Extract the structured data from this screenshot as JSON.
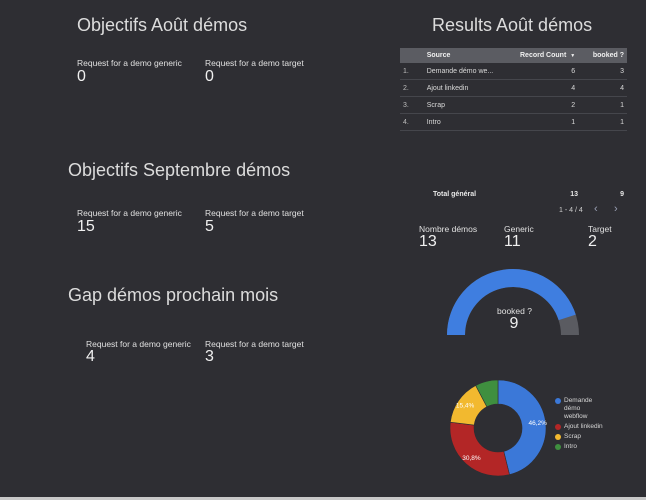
{
  "sections": {
    "aout_title": "Objectifs Août démos",
    "septembre_title": "Objectifs Septembre démos",
    "gap_title": "Gap démos prochain mois",
    "results_title": "Results Août démos"
  },
  "aout": {
    "generic_label": "Request for a demo generic",
    "generic_value": "0",
    "target_label": "Request for a demo target",
    "target_value": "0"
  },
  "septembre": {
    "generic_label": "Request for a demo generic",
    "generic_value": "15",
    "target_label": "Request for a demo target",
    "target_value": "5"
  },
  "gap": {
    "generic_label": "Request for a demo generic",
    "generic_value": "4",
    "target_label": "Request for a demo target",
    "target_value": "3"
  },
  "table": {
    "headers": {
      "source": "Source",
      "record_count": "Record Count",
      "sort_indicator": "▼",
      "booked": "booked ?"
    },
    "rows": [
      {
        "idx": "1.",
        "source": "Demande démo we...",
        "count": "6",
        "booked": "3"
      },
      {
        "idx": "2.",
        "source": "Ajout linkedin",
        "count": "4",
        "booked": "4"
      },
      {
        "idx": "3.",
        "source": "Scrap",
        "count": "2",
        "booked": "1"
      },
      {
        "idx": "4.",
        "source": "Intro",
        "count": "1",
        "booked": "1"
      }
    ],
    "total_label": "Total général",
    "total_count": "13",
    "total_booked": "9",
    "pagination": "1 - 4 / 4",
    "prev_icon": "‹",
    "next_icon": "›"
  },
  "summary": {
    "nombre_label": "Nombre démos",
    "nombre_value": "13",
    "generic_label": "Generic",
    "generic_value": "11",
    "target_label": "Target",
    "target_value": "2"
  },
  "gauge": {
    "label": "booked ?",
    "value": "9",
    "fill_fraction": 0.9,
    "fill_color": "#3f7ee0",
    "track_color": "#5a5b61"
  },
  "chart_data": {
    "type": "pie",
    "donut": true,
    "categories": [
      "Demande démo webflow",
      "Ajout linkedin",
      "Scrap",
      "Intro"
    ],
    "values": [
      46.2,
      30.8,
      15.4,
      7.7
    ],
    "data_labels": [
      "46,2%",
      "30,8%",
      "15,4%",
      ""
    ],
    "colors": [
      "#3b78d8",
      "#b32626",
      "#f2b92f",
      "#3f8f3f"
    ],
    "legend_position": "right"
  }
}
